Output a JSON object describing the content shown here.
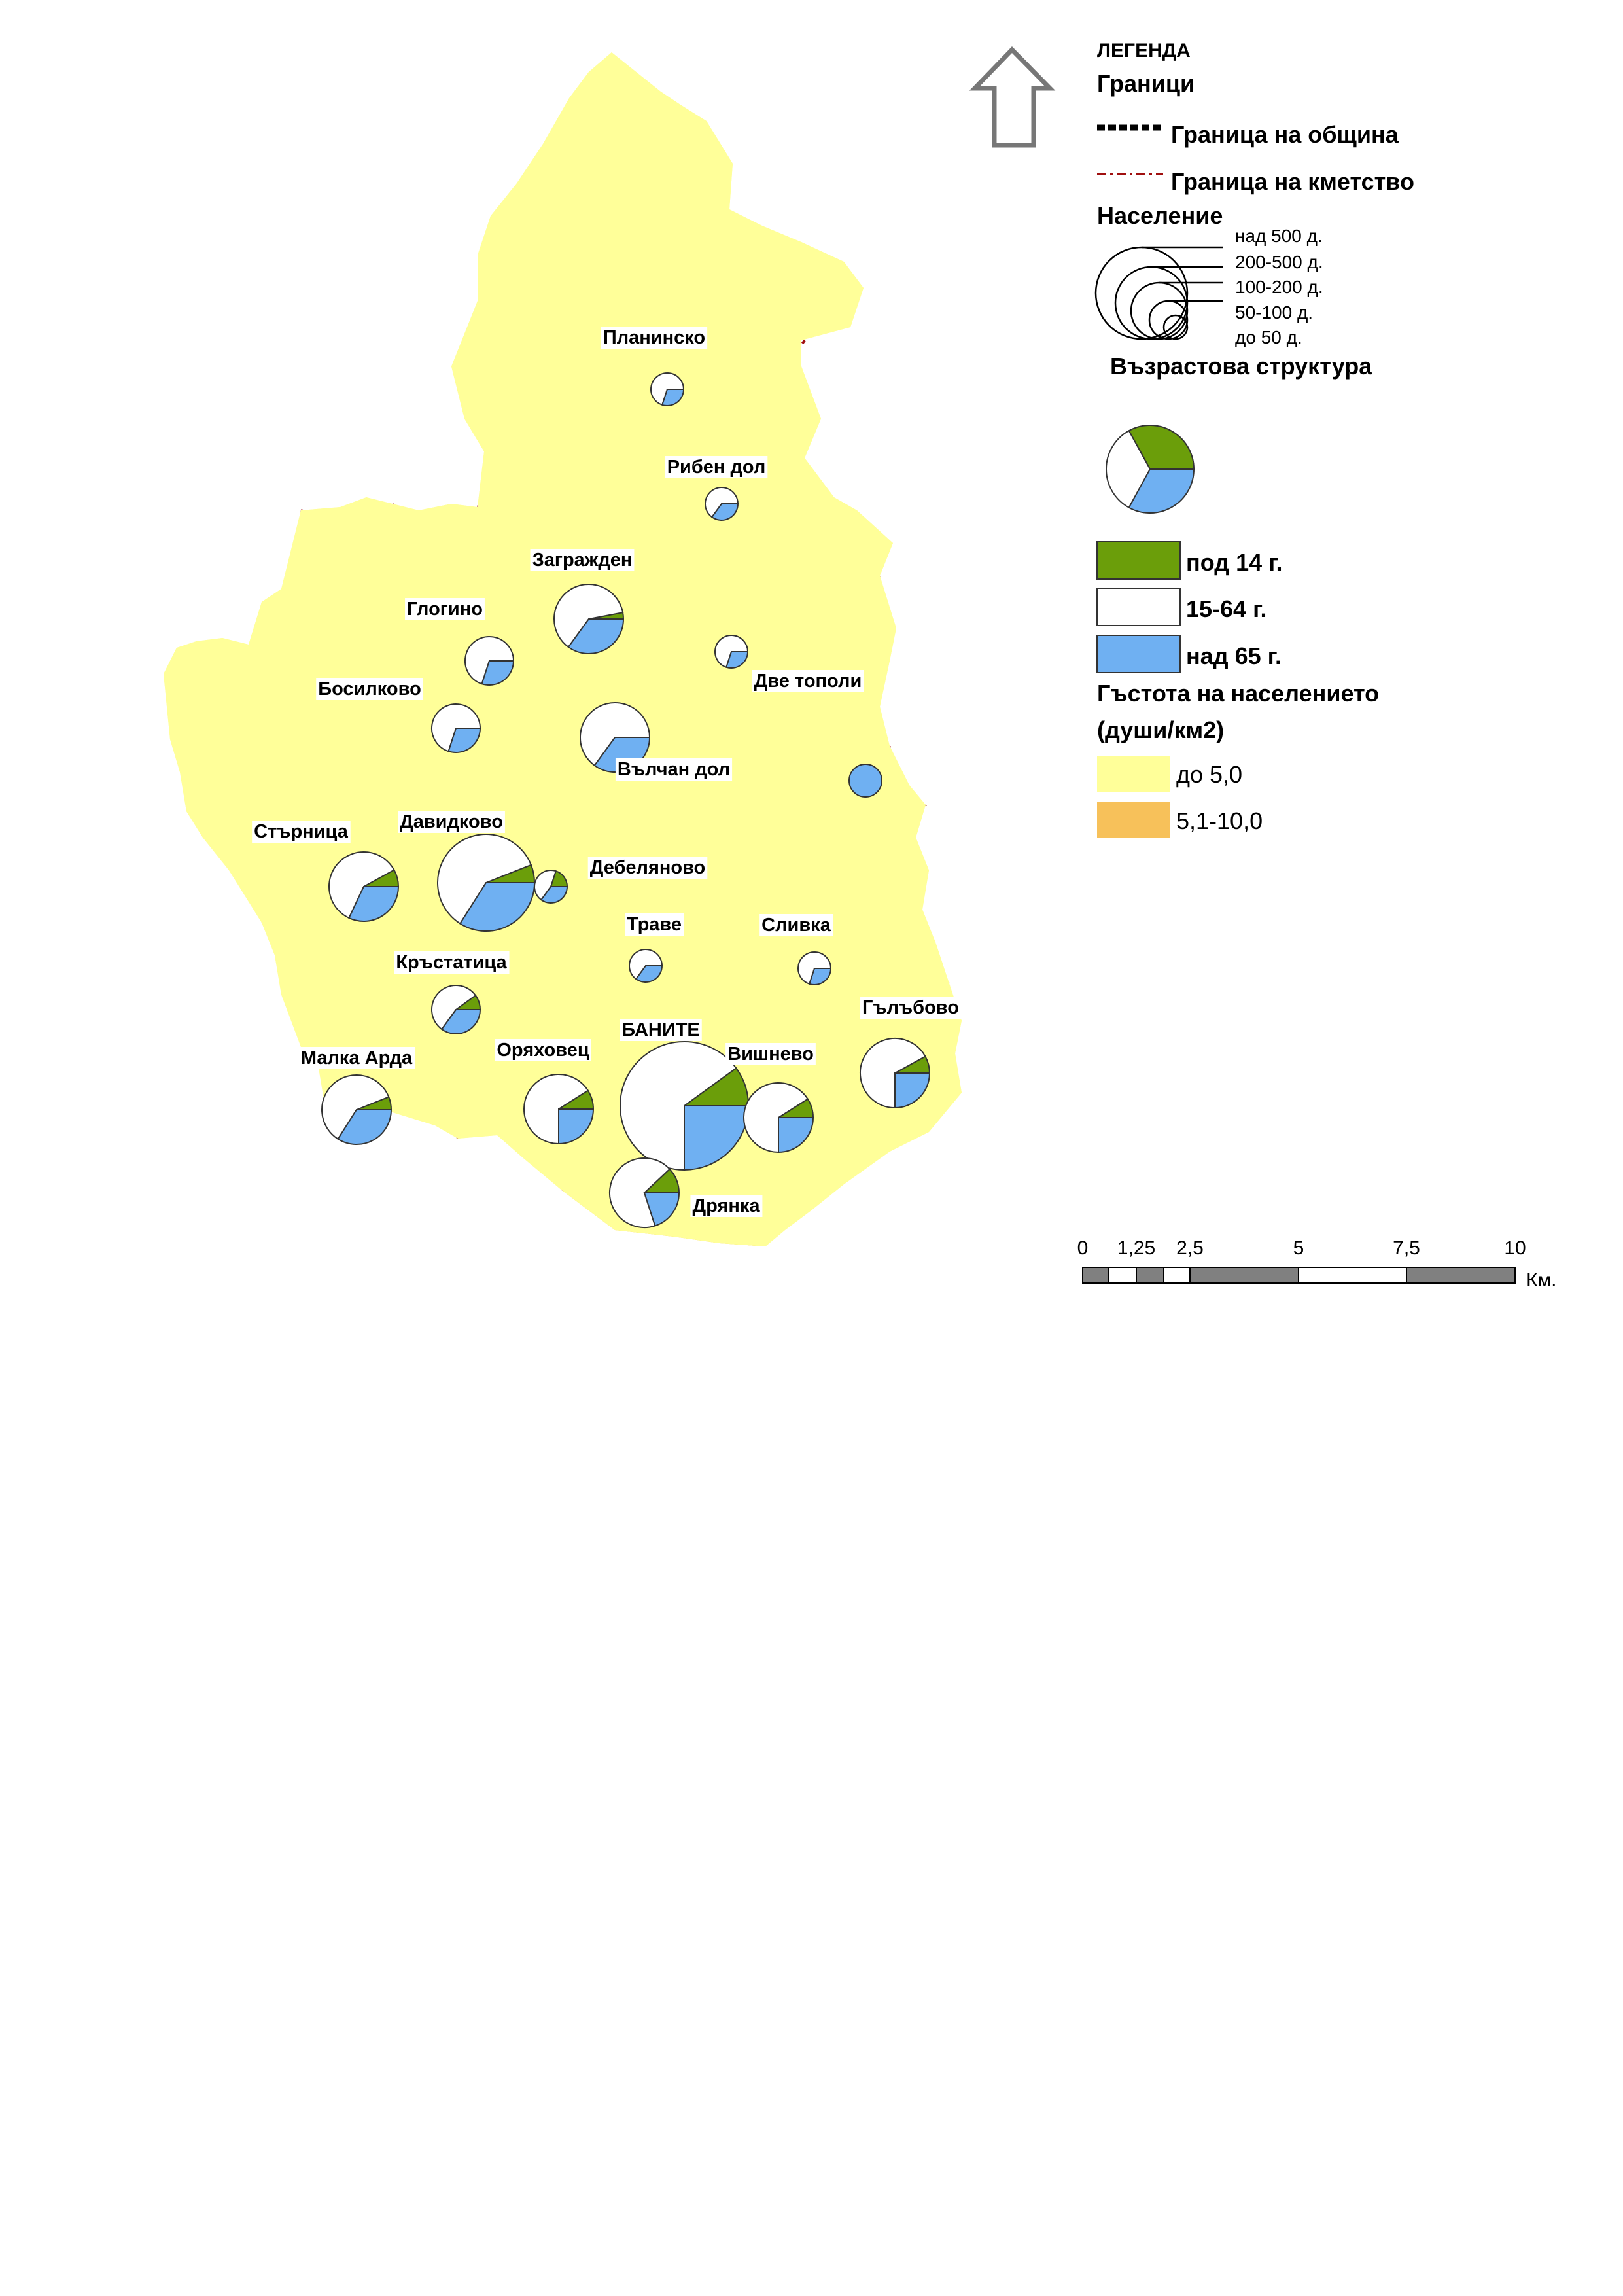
{
  "legend": {
    "title": "ЛЕГЕНДА",
    "borders_heading": "Граници",
    "municipality_border": "Граница на община",
    "mayoralty_border": "Граница на кметство",
    "population_heading": "Население",
    "population_classes": [
      "над 500 д.",
      "200-500 д.",
      "100-200 д.",
      "50-100 д.",
      "до 50 д."
    ],
    "age_heading": "Възрастова структура",
    "age_classes": [
      {
        "label": "под 14 г.",
        "color": "#6b9e0a"
      },
      {
        "label": "15-64 г.",
        "color": "#ffffff"
      },
      {
        "label": "над 65 г.",
        "color": "#6fb0f2"
      }
    ],
    "density_heading_1": "Гъстота на населението",
    "density_heading_2": "(души/км2)",
    "density_classes": [
      {
        "label": "до 5,0",
        "color": "#ffff99"
      },
      {
        "label": "5,1-10,0",
        "color": "#f7c15a"
      }
    ]
  },
  "scale_bar": {
    "ticks": [
      "0",
      "1,25",
      "2,5",
      "5",
      "7,5",
      "10"
    ],
    "unit": "Км."
  },
  "colors": {
    "low_density": "#ffff99",
    "high_density": "#f7c15a",
    "municipality_border": "#000000",
    "mayoralty_border": "#a01010",
    "under14": "#6b9e0a",
    "age15_64": "#ffffff",
    "over65": "#6fb0f2"
  },
  "villages": [
    {
      "name": "Планинско",
      "population_class": "до 50 д.",
      "age_share": [
        0,
        0.7,
        0.3
      ]
    },
    {
      "name": "Рибен дол",
      "population_class": "до 50 д.",
      "age_share": [
        0,
        0.65,
        0.35
      ]
    },
    {
      "name": "Загражден",
      "population_class": "100-200 д.",
      "age_share": [
        0.03,
        0.62,
        0.35
      ]
    },
    {
      "name": "Глогино",
      "population_class": "50-100 д.",
      "age_share": [
        0,
        0.7,
        0.3
      ]
    },
    {
      "name": "Две тополи",
      "population_class": "до 50 д.",
      "age_share": [
        0,
        0.7,
        0.3
      ]
    },
    {
      "name": "Босилково",
      "population_class": "50-100 д.",
      "age_share": [
        0,
        0.7,
        0.3
      ]
    },
    {
      "name": "Вълчан дол",
      "population_class": "100-200 д.",
      "age_share": [
        0,
        0.65,
        0.35
      ]
    },
    {
      "name": "",
      "population_class": "до 50 д.",
      "age_share": [
        0,
        0,
        1
      ]
    },
    {
      "name": "Стърница",
      "population_class": "100-200 д.",
      "age_share": [
        0.08,
        0.6,
        0.32
      ]
    },
    {
      "name": "Давидково",
      "population_class": "200-500 д.",
      "age_share": [
        0.06,
        0.6,
        0.34
      ]
    },
    {
      "name": "Дебеляново",
      "population_class": "до 50 д.",
      "age_share": [
        0.2,
        0.45,
        0.35
      ]
    },
    {
      "name": "Траве",
      "population_class": "до 50 д.",
      "age_share": [
        0,
        0.65,
        0.35
      ]
    },
    {
      "name": "Сливка",
      "population_class": "до 50 д.",
      "age_share": [
        0,
        0.7,
        0.3
      ]
    },
    {
      "name": "Кръстатица",
      "population_class": "50-100 д.",
      "age_share": [
        0.1,
        0.55,
        0.35
      ]
    },
    {
      "name": "Гълъбово",
      "population_class": "100-200 д.",
      "age_share": [
        0.08,
        0.67,
        0.25
      ]
    },
    {
      "name": "Малка Арда",
      "population_class": "100-200 д.",
      "age_share": [
        0.06,
        0.6,
        0.34
      ]
    },
    {
      "name": "Оряховец",
      "population_class": "100-200 д.",
      "age_share": [
        0.09,
        0.66,
        0.25
      ]
    },
    {
      "name": "БАНИТЕ",
      "population_class": "над 500 д.",
      "age_share": [
        0.1,
        0.65,
        0.25
      ]
    },
    {
      "name": "Вишнево",
      "population_class": "100-200 д.",
      "age_share": [
        0.09,
        0.66,
        0.25
      ]
    },
    {
      "name": "Дрянка",
      "population_class": "100-200 д.",
      "age_share": [
        0.12,
        0.68,
        0.2
      ]
    }
  ]
}
